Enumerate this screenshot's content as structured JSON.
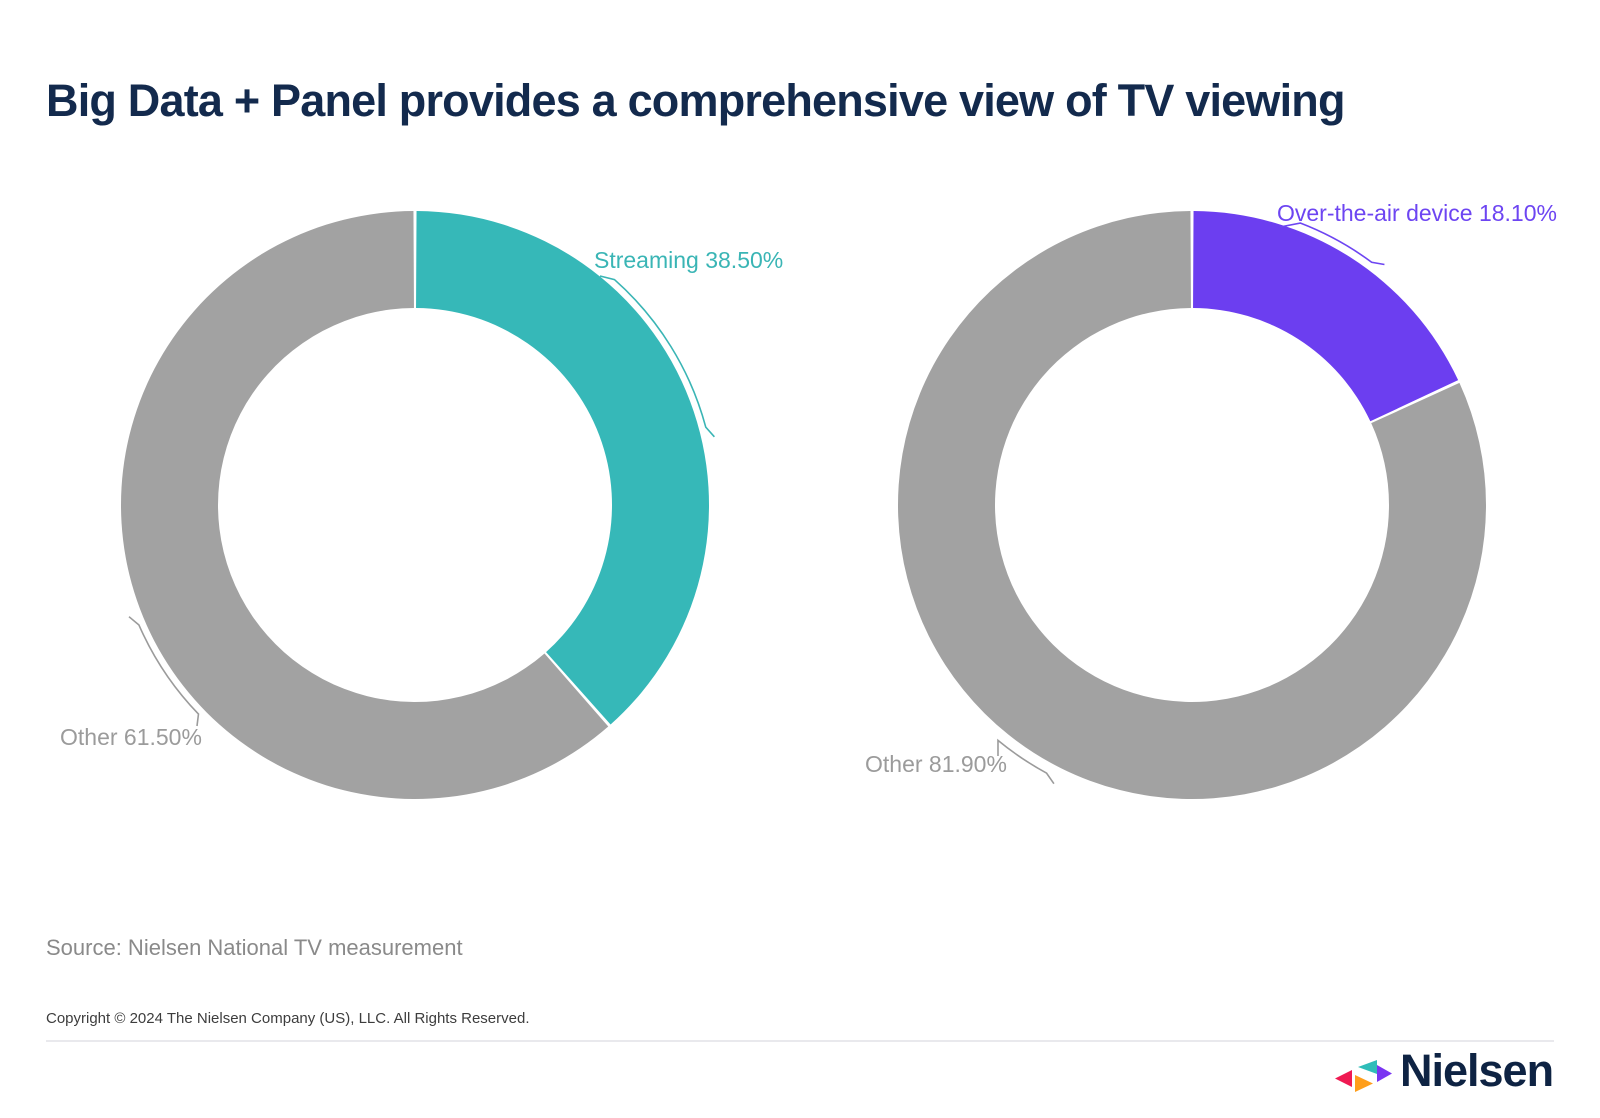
{
  "page": {
    "title": "Big Data + Panel provides a comprehensive view of TV viewing",
    "source_note": "Source: Nielsen National TV measurement",
    "copyright": "Copyright © 2024 The Nielsen Company (US), LLC. All Rights Reserved.",
    "brand_wordmark": "Nielsen"
  },
  "colors": {
    "title_navy": "#132a4d",
    "source_gray": "#8a8a8a",
    "copyright_dark": "#3d3d3d",
    "divider": "#e9e9ed",
    "background": "#ffffff",
    "logo": {
      "pink": "#ef1a52",
      "teal": "#2fbdb9",
      "purple": "#7a35f2",
      "orange": "#ff9e1b",
      "wordmark_navy": "#0e2343"
    }
  },
  "chart_data": [
    {
      "type": "pie",
      "subtype": "donut",
      "title": "Streaming share of TV viewing",
      "start_angle_deg": 0,
      "direction": "clockwise",
      "legend": "none",
      "slices": [
        {
          "label": "Streaming",
          "value": 38.5,
          "display": "Streaming 38.50%",
          "color": "#36b8b8",
          "label_color": "#3ab5b5"
        },
        {
          "label": "Other",
          "value": 61.5,
          "display": "Other 61.50%",
          "color": "#a2a2a2",
          "label_color": "#9b9b9b"
        }
      ]
    },
    {
      "type": "pie",
      "subtype": "donut",
      "title": "Over-the-air device share of TV viewing",
      "start_angle_deg": 0,
      "direction": "clockwise",
      "legend": "none",
      "slices": [
        {
          "label": "Over-the-air device",
          "value": 18.1,
          "display": "Over-the-air device 18.10%",
          "color": "#6c3ef0",
          "label_color": "#6d45f2"
        },
        {
          "label": "Other",
          "value": 81.9,
          "display": "Other 81.90%",
          "color": "#a2a2a2",
          "label_color": "#9b9b9b"
        }
      ]
    }
  ]
}
